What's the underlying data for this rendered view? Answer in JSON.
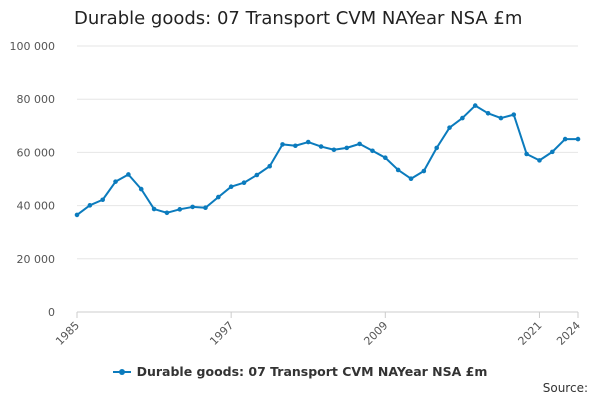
{
  "title": "Durable goods: 07 Transport CVM NAYear NSA £m",
  "source_label": "Source:",
  "accent_color": "#0b7bbd",
  "chart_data": {
    "type": "line",
    "title": "Durable goods: 07 Transport CVM NAYear NSA £m",
    "xlabel": "",
    "ylabel": "",
    "x": [
      1985,
      1986,
      1987,
      1988,
      1989,
      1990,
      1991,
      1992,
      1993,
      1994,
      1995,
      1996,
      1997,
      1998,
      1999,
      2000,
      2001,
      2002,
      2003,
      2004,
      2005,
      2006,
      2007,
      2008,
      2009,
      2010,
      2011,
      2012,
      2013,
      2014,
      2015,
      2016,
      2017,
      2018,
      2019,
      2020,
      2021,
      2022,
      2023,
      2024
    ],
    "xtick_labels": [
      "1985",
      "1997",
      "2009",
      "2021",
      "2024"
    ],
    "ylim": [
      0,
      100000
    ],
    "ytick_labels": [
      "0",
      "20 000",
      "40 000",
      "60 000",
      "80 000",
      "100 000"
    ],
    "grid": true,
    "legend_position": "bottom",
    "series": [
      {
        "name": "Durable goods: 07 Transport CVM NAYear NSA £m",
        "color": "#0b7bbd",
        "values": [
          36500,
          40100,
          42200,
          49000,
          51700,
          46200,
          38700,
          37300,
          38600,
          39500,
          39200,
          43200,
          47100,
          48600,
          51500,
          54800,
          63000,
          62500,
          63900,
          62200,
          61000,
          61700,
          63200,
          60600,
          58000,
          53400,
          50100,
          53000,
          61700,
          69300,
          72900,
          77600,
          74700,
          72900,
          74200,
          59400,
          57000,
          60200,
          65000,
          65000
        ]
      }
    ]
  }
}
